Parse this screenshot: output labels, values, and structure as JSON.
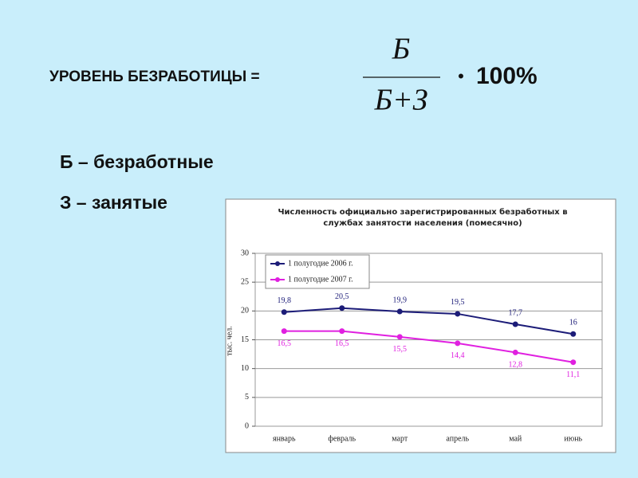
{
  "header": {
    "label": "УРОВЕНЬ БЕЗРАБОТИЦЫ =",
    "numerator": "Б",
    "denominator": "Б+З",
    "bullet": "•",
    "multiplier": "100%"
  },
  "legend_items": [
    "Б – безработные",
    "З – занятые"
  ],
  "chart_data": {
    "type": "line",
    "title": "Численность официально зарегистрированных безработных в службах занятости населения (помесячно)",
    "y_label": "тыс. чел.",
    "categories": [
      "январь",
      "февраль",
      "март",
      "апрель",
      "май",
      "июнь"
    ],
    "series": [
      {
        "name": "1 полугодие 2006 г.",
        "color": "#1c1c78",
        "values": [
          19.8,
          20.5,
          19.9,
          19.5,
          17.7,
          16
        ],
        "value_labels": [
          "19,8",
          "20,5",
          "19,9",
          "19,5",
          "17,7",
          "16"
        ]
      },
      {
        "name": "1 полугодие 2007 г.",
        "color": "#e020e0",
        "values": [
          16.5,
          16.5,
          15.5,
          14.4,
          12.8,
          11.1
        ],
        "value_labels": [
          "16,5",
          "16,5",
          "15,5",
          "14,4",
          "12,8",
          "11,1"
        ]
      }
    ],
    "ylim": [
      0,
      30
    ],
    "yticks": [
      0,
      5,
      10,
      15,
      20,
      25,
      30
    ],
    "grid": true,
    "legend": "upper left"
  }
}
